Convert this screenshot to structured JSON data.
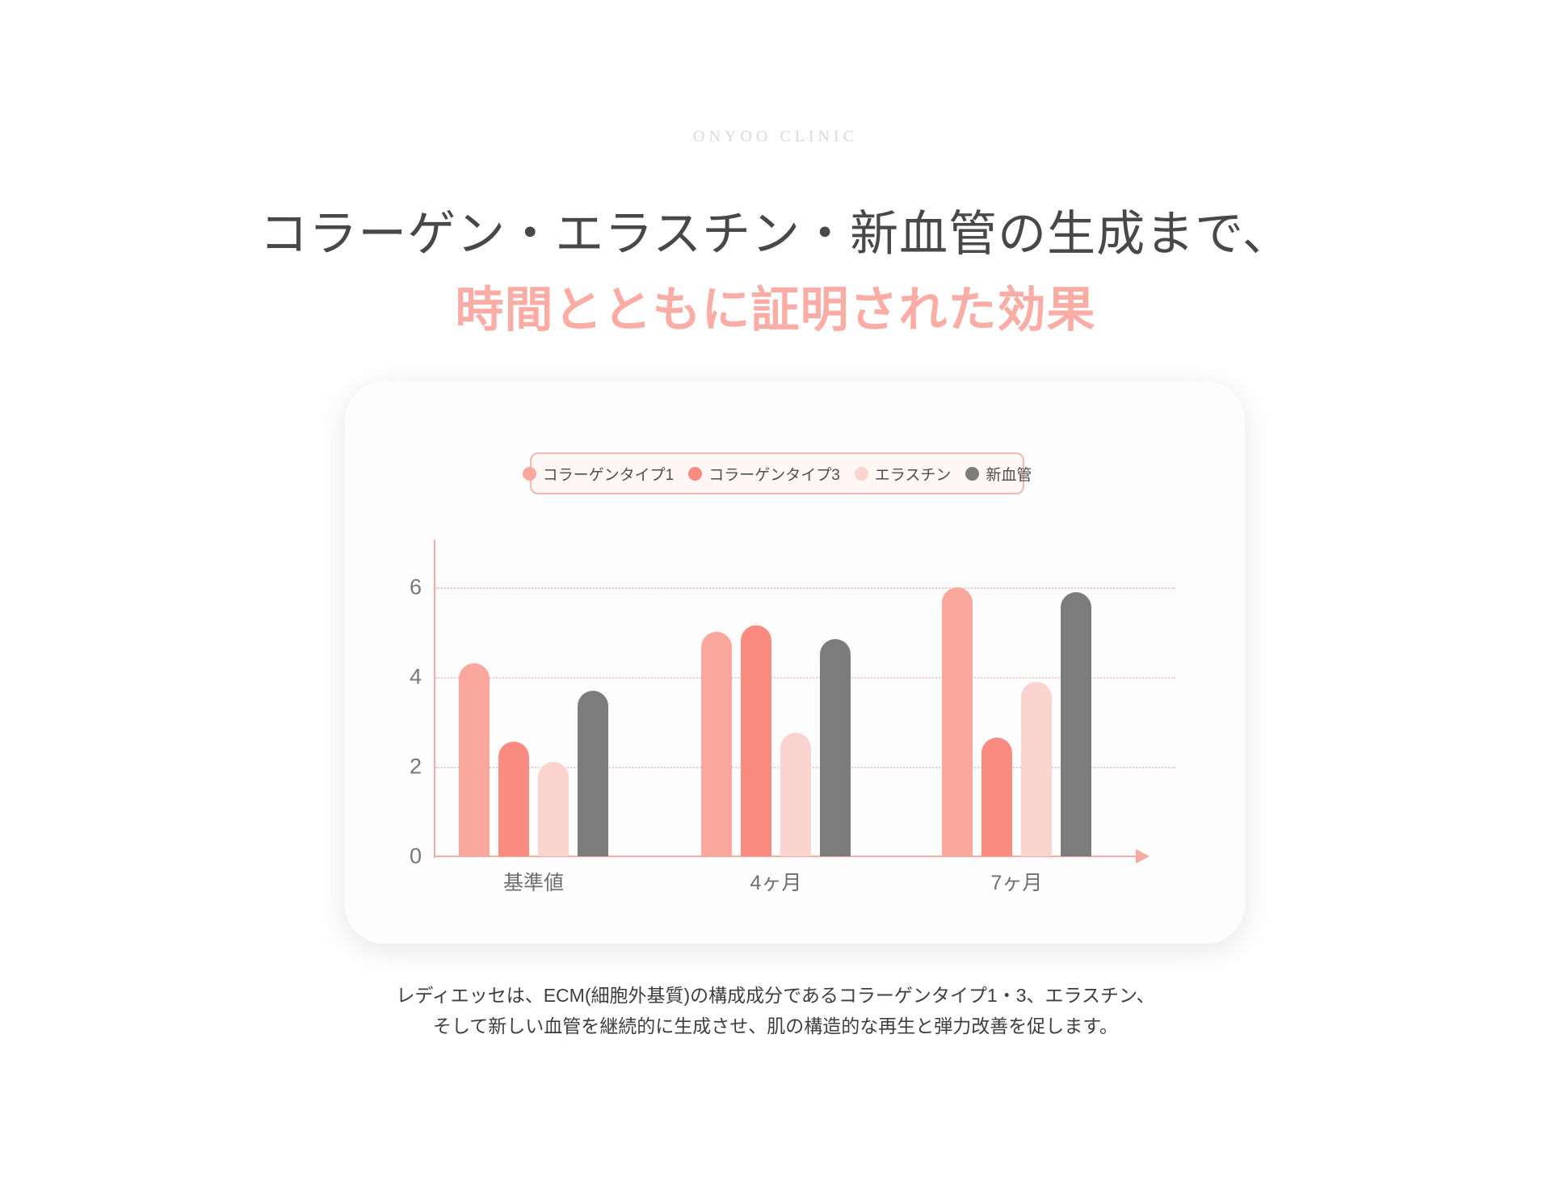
{
  "brand": "ONYOO CLINIC",
  "title": "コラーゲン・エラスチン・新血管の生成まで、",
  "subtitle": "時間とともに証明された効果",
  "description": {
    "line1": "レディエッセは、ECM(細胞外基質)の構成成分であるコラーゲンタイプ1・3、エラスチン、",
    "line2": "そして新しい血管を継続的に生成させ、肌の構造的な再生と弾力改善を促します。"
  },
  "colors": {
    "accent_pink": "#faaca5",
    "collagen1": "#faa79e",
    "collagen3": "#f98b80",
    "elastin": "#fbd4d0",
    "vessel": "#7c7c7c",
    "axis": "#f9aba3",
    "gridline": "#f7c9c4",
    "tick_text": "#777777",
    "title_text": "#484848",
    "brand_text": "#d9d9d9",
    "legend_border": "#f6b7b1",
    "legend_bg": "#fff7f6"
  },
  "chart_data": {
    "type": "bar",
    "title": "",
    "xlabel": "",
    "ylabel": "",
    "categories": [
      "基準値",
      "4ヶ月",
      "7ヶ月"
    ],
    "series": [
      {
        "name": "コラーゲンタイプ1",
        "color_key": "collagen1",
        "values": [
          4.3,
          5.0,
          6.0
        ]
      },
      {
        "name": "コラーゲンタイプ3",
        "color_key": "collagen3",
        "values": [
          2.55,
          5.15,
          2.65
        ]
      },
      {
        "name": "エラスチン",
        "color_key": "elastin",
        "values": [
          2.1,
          2.75,
          3.9
        ]
      },
      {
        "name": "新血管",
        "color_key": "vessel",
        "values": [
          3.7,
          4.85,
          5.9
        ]
      }
    ],
    "yticks": [
      0,
      2,
      4,
      6
    ],
    "ylim": [
      0,
      7.1
    ],
    "grid": "horizontal dotted lines at 2, 4, 6",
    "legend_position": "top-center",
    "bar_style": "rounded-top pill caps"
  }
}
